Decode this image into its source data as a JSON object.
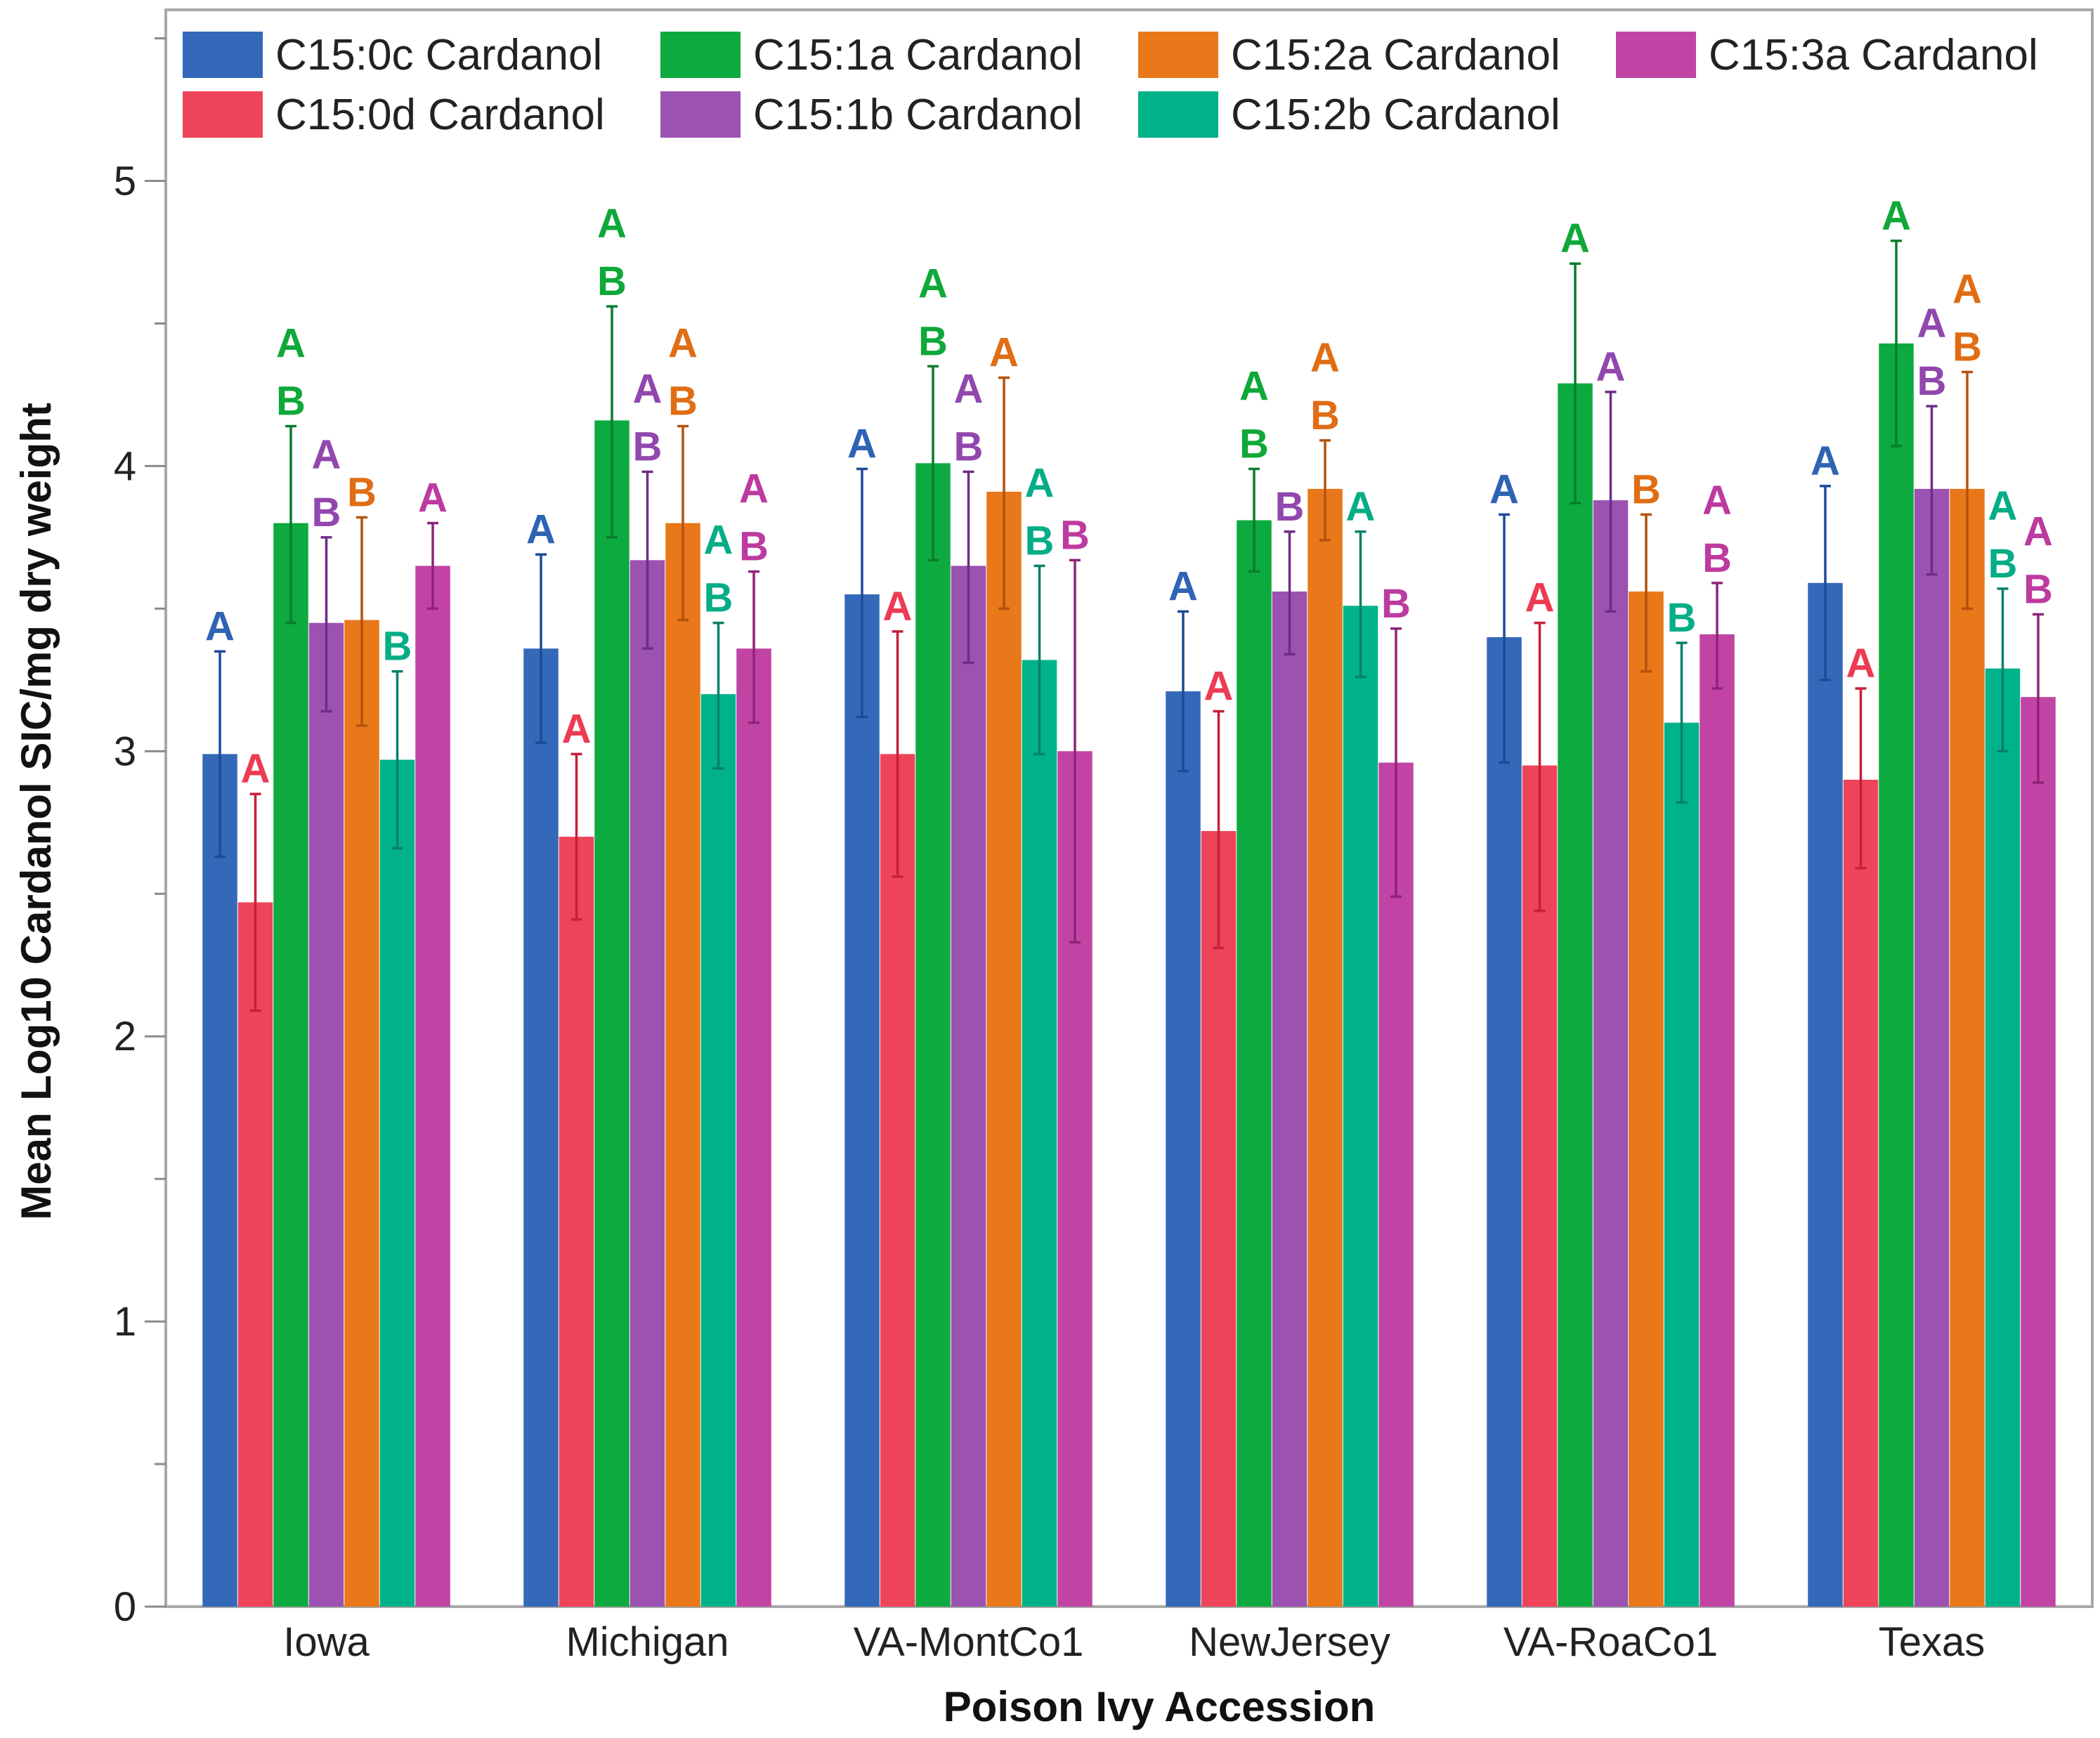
{
  "chart_data": {
    "type": "bar",
    "xlabel": "Poison Ivy Accession",
    "ylabel": "Mean Log10 Cardanol SIC/mg dry weight",
    "ylim": [
      0,
      5.6
    ],
    "yticks": [
      0,
      1,
      2,
      3,
      4,
      5
    ],
    "grid": false,
    "legend_position": "top",
    "categories": [
      "Iowa",
      "Michigan",
      "VA-MontCo1",
      "NewJersey",
      "VA-RoaCo1",
      "Texas"
    ],
    "series": [
      {
        "name": "C15:0c Cardanol",
        "color": "#3369b8",
        "values": [
          2.99,
          3.36,
          3.55,
          3.21,
          3.4,
          3.59
        ],
        "err_low": [
          2.63,
          3.03,
          3.12,
          2.93,
          2.96,
          3.25
        ],
        "err_high": [
          3.35,
          3.69,
          3.99,
          3.49,
          3.83,
          3.93
        ],
        "letters": [
          "A",
          "A",
          "A",
          "A",
          "A",
          "A"
        ]
      },
      {
        "name": "C15:0d Cardanol",
        "color": "#ee4459",
        "values": [
          2.47,
          2.7,
          2.99,
          2.72,
          2.95,
          2.9
        ],
        "err_low": [
          2.09,
          2.41,
          2.56,
          2.31,
          2.44,
          2.59
        ],
        "err_high": [
          2.85,
          2.99,
          3.42,
          3.14,
          3.45,
          3.22
        ],
        "letters": [
          "A",
          "A",
          "A",
          "A",
          "A",
          "A"
        ]
      },
      {
        "name": "C15:1a Cardanol",
        "color": "#0daa40",
        "values": [
          3.8,
          4.16,
          4.01,
          3.81,
          4.29,
          4.43
        ],
        "err_low": [
          3.45,
          3.75,
          3.67,
          3.63,
          3.87,
          4.07
        ],
        "err_high": [
          4.14,
          4.56,
          4.35,
          3.99,
          4.71,
          4.79
        ],
        "letters": [
          "AB",
          "AB",
          "AB",
          "AB",
          "A",
          "A"
        ]
      },
      {
        "name": "C15:1b Cardanol",
        "color": "#9b52b0",
        "values": [
          3.45,
          3.67,
          3.65,
          3.56,
          3.88,
          3.92
        ],
        "err_low": [
          3.14,
          3.36,
          3.31,
          3.34,
          3.49,
          3.62
        ],
        "err_high": [
          3.75,
          3.98,
          3.98,
          3.77,
          4.26,
          4.21
        ],
        "letters": [
          "AB",
          "AB",
          "AB",
          "B",
          "A",
          "AB"
        ]
      },
      {
        "name": "C15:2a Cardanol",
        "color": "#e8781a",
        "values": [
          3.46,
          3.8,
          3.91,
          3.92,
          3.56,
          3.92
        ],
        "err_low": [
          3.09,
          3.46,
          3.5,
          3.74,
          3.28,
          3.5
        ],
        "err_high": [
          3.82,
          4.14,
          4.31,
          4.09,
          3.83,
          4.33
        ],
        "letters": [
          "B",
          "AB",
          "A",
          "AB",
          "B",
          "AB"
        ]
      },
      {
        "name": "C15:2b Cardanol",
        "color": "#00b28a",
        "values": [
          2.97,
          3.2,
          3.32,
          3.51,
          3.1,
          3.29
        ],
        "err_low": [
          2.66,
          2.94,
          2.99,
          3.26,
          2.82,
          3.0
        ],
        "err_high": [
          3.28,
          3.45,
          3.65,
          3.77,
          3.38,
          3.57
        ],
        "letters": [
          "B",
          "AB",
          "AB",
          "A",
          "B",
          "AB"
        ]
      },
      {
        "name": "C15:3a Cardanol",
        "color": "#c144a4",
        "values": [
          3.65,
          3.36,
          3.0,
          2.96,
          3.41,
          3.19
        ],
        "err_low": [
          3.5,
          3.1,
          2.33,
          2.49,
          3.22,
          2.89
        ],
        "err_high": [
          3.8,
          3.63,
          3.67,
          3.43,
          3.59,
          3.48
        ],
        "letters": [
          "A",
          "AB",
          "B",
          "B",
          "AB",
          "AB"
        ]
      }
    ]
  },
  "letter_colors": {
    "C15:0c Cardanol": "#2f63b4",
    "C15:0d Cardanol": "#ec3b52",
    "C15:1a Cardanol": "#0fa839",
    "C15:1b Cardanol": "#9147ad",
    "C15:2a Cardanol": "#e06d14",
    "C15:2b Cardanol": "#04ad86",
    "C15:3a Cardanol": "#bd3aa0"
  },
  "error_bar_colors": {
    "C15:0c Cardanol": "#1e4a98",
    "C15:0d Cardanol": "#c81f38",
    "C15:1a Cardanol": "#0a7d2c",
    "C15:1b Cardanol": "#6e2c88",
    "C15:2a Cardanol": "#b3520c",
    "C15:2b Cardanol": "#06806a",
    "C15:3a Cardanol": "#8f2377"
  }
}
